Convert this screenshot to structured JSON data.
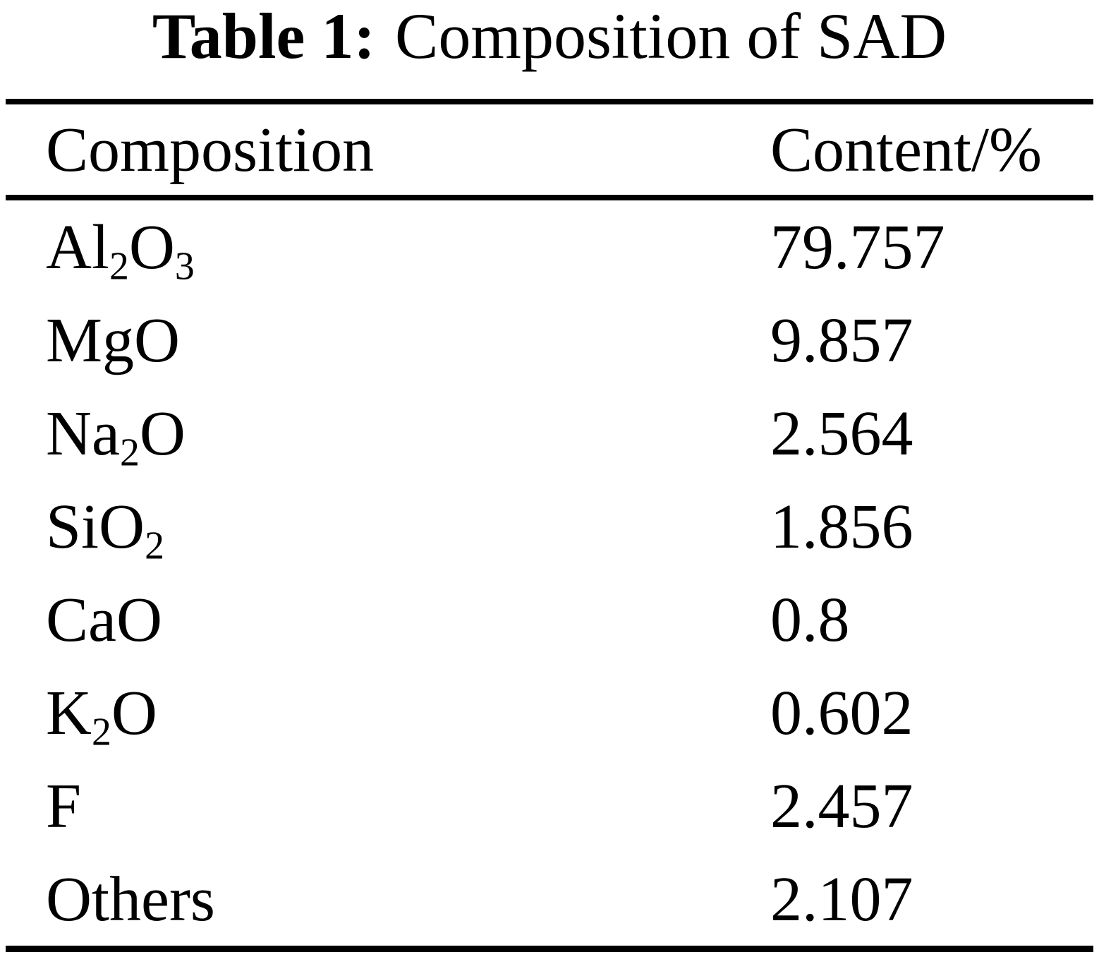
{
  "table": {
    "caption": {
      "label": "Table 1:",
      "text": "Composition of SAD"
    },
    "columns": [
      "Composition",
      "Content/%"
    ],
    "rows": [
      {
        "formula": [
          {
            "t": "Al"
          },
          {
            "t": "2",
            "sub": true
          },
          {
            "t": "O"
          },
          {
            "t": "3",
            "sub": true
          }
        ],
        "content": "79.757"
      },
      {
        "formula": [
          {
            "t": "MgO"
          }
        ],
        "content": "9.857"
      },
      {
        "formula": [
          {
            "t": "Na"
          },
          {
            "t": "2",
            "sub": true
          },
          {
            "t": "O"
          }
        ],
        "content": "2.564"
      },
      {
        "formula": [
          {
            "t": "SiO"
          },
          {
            "t": "2",
            "sub": true
          }
        ],
        "content": "1.856"
      },
      {
        "formula": [
          {
            "t": "CaO"
          }
        ],
        "content": "0.8"
      },
      {
        "formula": [
          {
            "t": "K"
          },
          {
            "t": "2",
            "sub": true
          },
          {
            "t": "O"
          }
        ],
        "content": "0.602"
      },
      {
        "formula": [
          {
            "t": "F"
          }
        ],
        "content": "2.457"
      },
      {
        "formula": [
          {
            "t": "Others"
          }
        ],
        "content": "2.107"
      }
    ],
    "colors": {
      "text": "#000000",
      "background": "#ffffff",
      "rule": "#000000"
    }
  }
}
